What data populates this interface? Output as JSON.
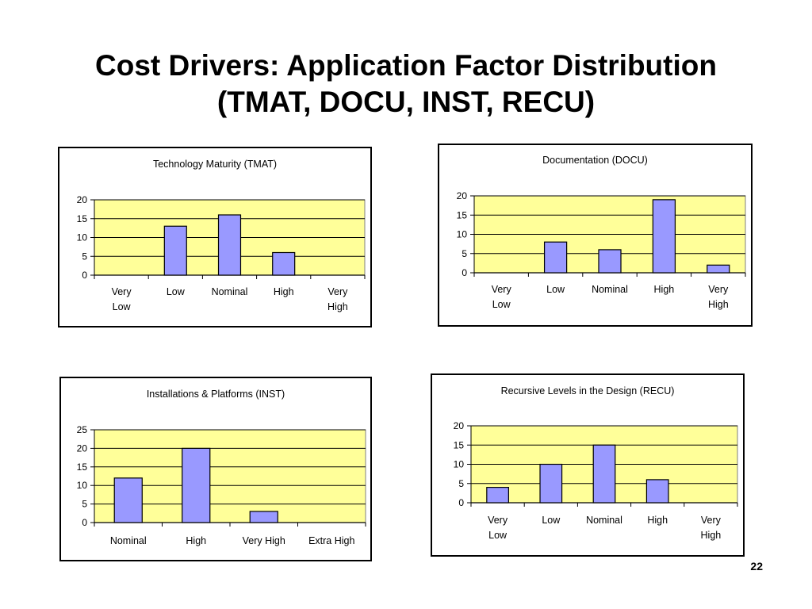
{
  "slide": {
    "title_line1": "Cost Drivers: Application Factor Distribution",
    "title_line2": "(TMAT, DOCU, INST, RECU)",
    "page_number": "22"
  },
  "colors": {
    "plot_background": "#FFFF99",
    "bar_fill": "#9999FF",
    "bar_stroke": "#000000",
    "gridline": "#000000"
  },
  "chart_data": [
    {
      "type": "bar",
      "title": "Technology Maturity (TMAT)",
      "categories": [
        [
          "Very",
          "Low"
        ],
        [
          "Low"
        ],
        [
          "Nominal"
        ],
        [
          "High"
        ],
        [
          "Very",
          "High"
        ]
      ],
      "values": [
        0,
        13,
        16,
        6,
        0
      ],
      "yticks": [
        0,
        5,
        10,
        15,
        20
      ],
      "ylim": [
        0,
        20
      ],
      "grid": true,
      "legend": "none"
    },
    {
      "type": "bar",
      "title": "Documentation (DOCU)",
      "categories": [
        [
          "Very",
          "Low"
        ],
        [
          "Low"
        ],
        [
          "Nominal"
        ],
        [
          "High"
        ],
        [
          "Very",
          "High"
        ]
      ],
      "values": [
        0,
        8,
        6,
        19,
        2
      ],
      "yticks": [
        0,
        5,
        10,
        15,
        20
      ],
      "ylim": [
        0,
        20
      ],
      "grid": true,
      "legend": "none"
    },
    {
      "type": "bar",
      "title": "Installations & Platforms (INST)",
      "categories": [
        [
          "Nominal"
        ],
        [
          "High"
        ],
        [
          "Very High"
        ],
        [
          "Extra High"
        ]
      ],
      "values": [
        12,
        20,
        3,
        0
      ],
      "yticks": [
        0,
        5,
        10,
        15,
        20,
        25
      ],
      "ylim": [
        0,
        25
      ],
      "grid": true,
      "legend": "none"
    },
    {
      "type": "bar",
      "title": "Recursive Levels in the Design (RECU)",
      "categories": [
        [
          "Very",
          "Low"
        ],
        [
          "Low"
        ],
        [
          "Nominal"
        ],
        [
          "High"
        ],
        [
          "Very",
          "High"
        ]
      ],
      "values": [
        4,
        10,
        15,
        6,
        0
      ],
      "yticks": [
        0,
        5,
        10,
        15,
        20
      ],
      "ylim": [
        0,
        20
      ],
      "grid": true,
      "legend": "none"
    }
  ]
}
